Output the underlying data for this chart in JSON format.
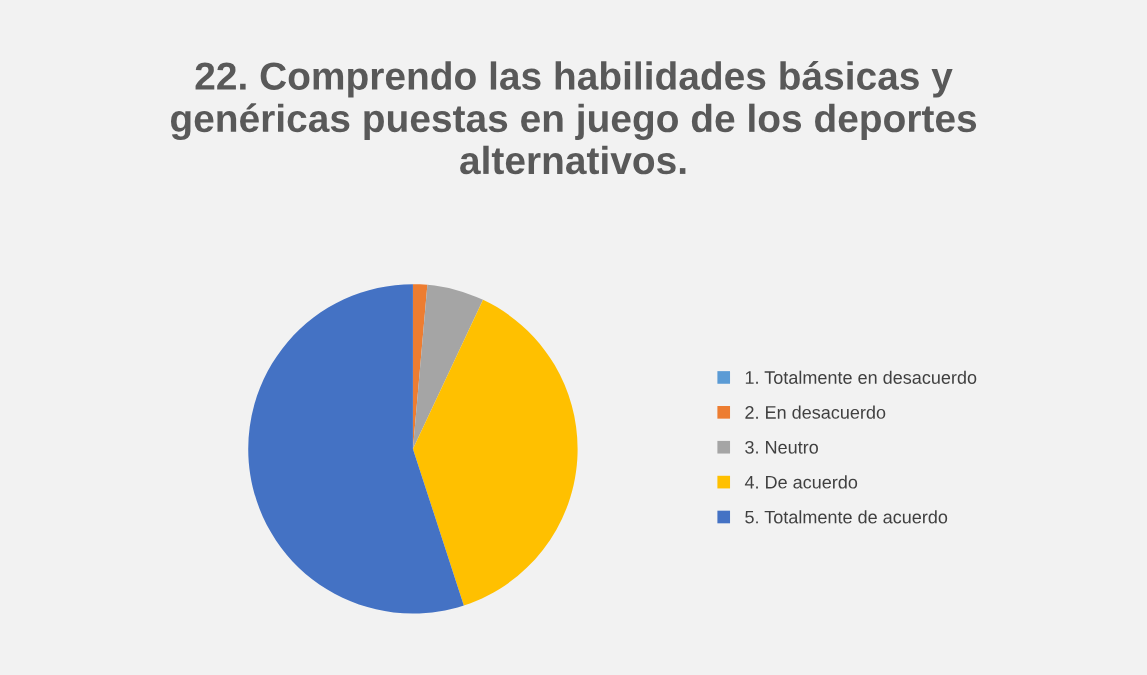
{
  "chart_data": {
    "type": "pie",
    "title": "22. Comprendo las habilidades básicas y genéricas puestas en juego de los deportes alternativos.",
    "categories": [
      "1. Totalmente en desacuerdo",
      "2. En desacuerdo",
      "3. Neutro",
      "4. De acuerdo",
      "5. Totalmente de acuerdo"
    ],
    "values": [
      0,
      1.4,
      5.6,
      38.0,
      55.0
    ],
    "colors": [
      "#5b9bd5",
      "#ed7d31",
      "#a5a5a5",
      "#ffc000",
      "#4472c4"
    ],
    "legend": "right"
  }
}
